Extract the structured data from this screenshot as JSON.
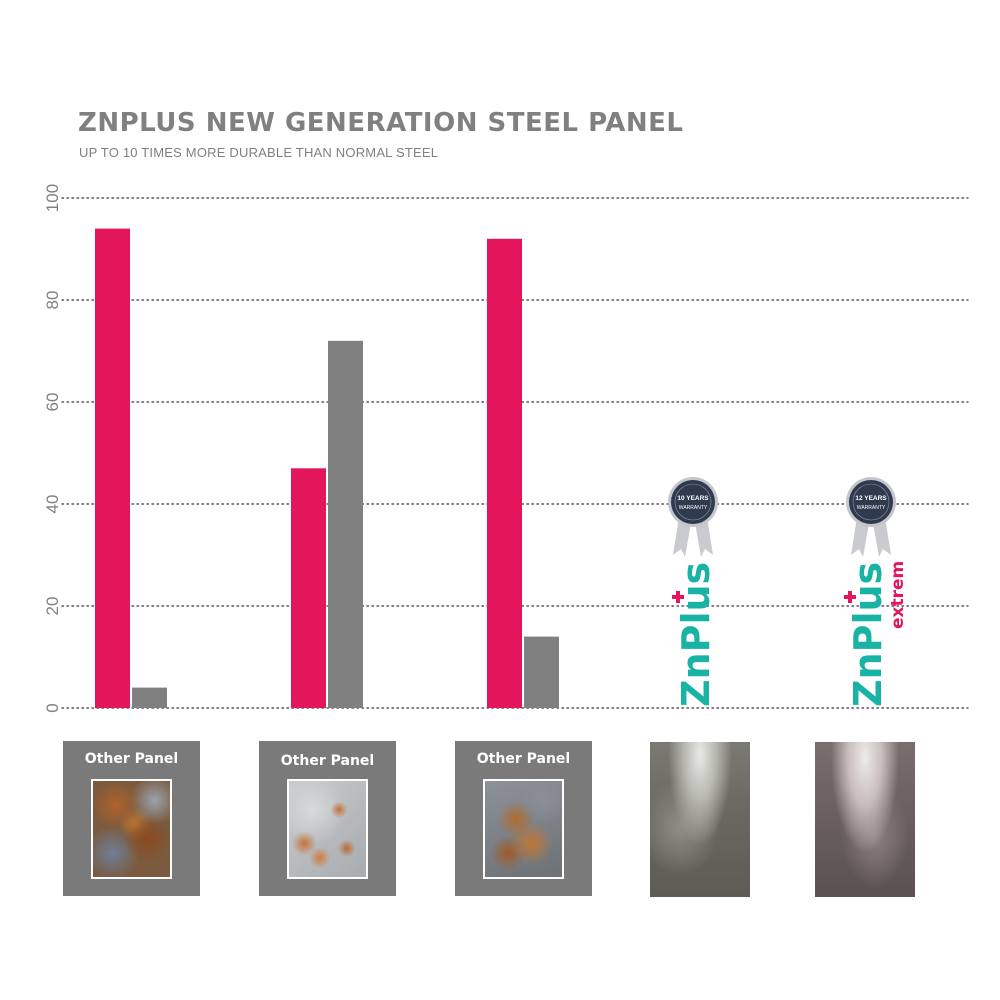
{
  "title": "ZNPLUS NEW GENERATION STEEL PANEL",
  "subtitle": "UP TO 10 TIMES MORE DURABLE THAN NORMAL STEEL",
  "colors": {
    "series_pink": "#e3165b",
    "series_gray": "#808080",
    "grid": "#555555",
    "brand_teal": "#19b3a6",
    "brand_pink": "#e3165b",
    "badge_navy": "#2f3a4f"
  },
  "chart_data": {
    "type": "bar",
    "title": "ZNPLUS NEW GENERATION STEEL PANEL",
    "subtitle": "UP TO 10 TIMES MORE DURABLE THAN NORMAL STEEL",
    "xlabel": "",
    "ylabel": "",
    "ylim": [
      0,
      100
    ],
    "yticks": [
      0,
      20,
      40,
      60,
      80,
      100
    ],
    "grid": true,
    "grid_style": "dotted",
    "categories": [
      "Other Panel",
      "Other Panel",
      "Other Panel",
      "",
      ""
    ],
    "series": [
      {
        "color": "#e3165b",
        "values": [
          94,
          47,
          92,
          null,
          null
        ]
      },
      {
        "color": "#808080",
        "values": [
          4,
          72,
          14,
          null,
          null
        ]
      }
    ]
  },
  "panels": [
    {
      "label": "Other Panel",
      "photo": "rust-heavy-photo"
    },
    {
      "label": "Other Panel",
      "photo": "rust-spots-photo"
    },
    {
      "label": "Other Panel",
      "photo": "rust-patches-photo"
    }
  ],
  "products": [
    {
      "logo_text": "ZnPlus",
      "badge_line1": "10 YEARS",
      "badge_line2": "WARRANTY",
      "icon": "warranty-badge-icon",
      "photo": "steel-panel-photo"
    },
    {
      "logo_text": "ZnPlus",
      "logo_suffix": "extrem",
      "badge_line1": "12 YEARS",
      "badge_line2": "WARRANTY",
      "icon": "warranty-badge-icon",
      "photo": "steel-panel-photo"
    }
  ]
}
